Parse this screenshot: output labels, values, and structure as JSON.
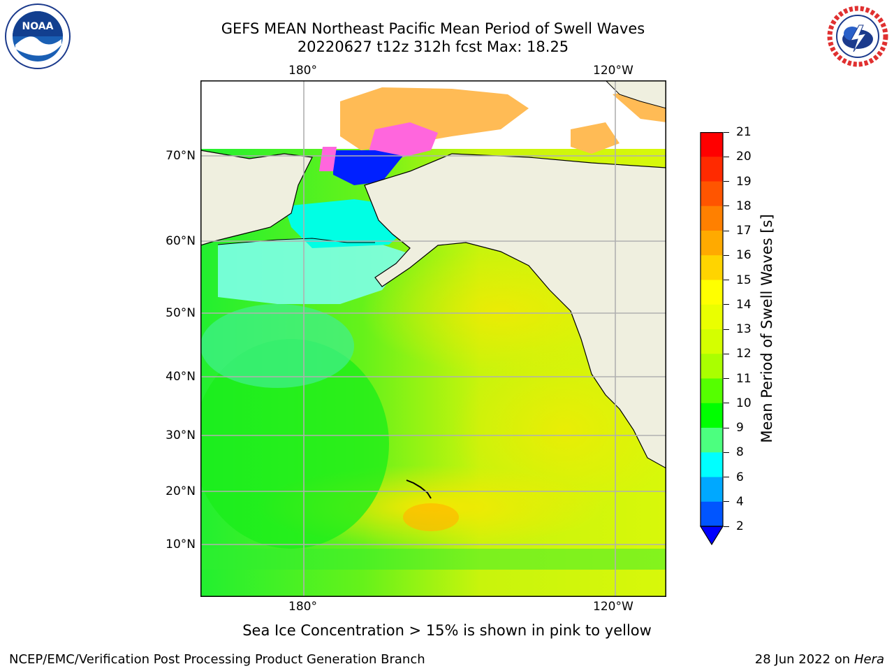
{
  "title": {
    "line1": "GEFS MEAN Northeast Pacific Mean Period of Swell Waves",
    "line2": "20220627 t12z 312h fcst   Max: 18.25"
  },
  "map": {
    "lon_labels": [
      "180°",
      "120°W"
    ],
    "lat_labels": [
      "70°N",
      "60°N",
      "50°N",
      "40°N",
      "30°N",
      "20°N",
      "10°N"
    ],
    "caption": "Sea Ice Concentration > 15% is shown in pink to yellow"
  },
  "colorbar": {
    "label": "Mean Period of Swell Waves [s]",
    "ticks": [
      "21",
      "20",
      "19",
      "18",
      "17",
      "16",
      "15",
      "14",
      "13",
      "12",
      "11",
      "10",
      "9",
      "8",
      "6",
      "4",
      "2"
    ],
    "colors": [
      "#ff0000",
      "#ff2a00",
      "#ff5500",
      "#ff8000",
      "#ffaa00",
      "#ffd400",
      "#ffff00",
      "#eaff00",
      "#d4ff00",
      "#aaff00",
      "#55ff00",
      "#00ff00",
      "#4cff7f",
      "#99ffff",
      "#4cffff",
      "#00ffff",
      "#00a8ff",
      "#0055ff"
    ],
    "extend_color": "#0000ff"
  },
  "logos": {
    "noaa_text": "NOAA",
    "nws_text": "NATIONAL WEATHER SERVICE"
  },
  "footer": {
    "left": "NCEP/EMC/Verification Post Processing Product Generation Branch",
    "right_date": "28 Jun 2022 on",
    "right_host": "Hera"
  }
}
